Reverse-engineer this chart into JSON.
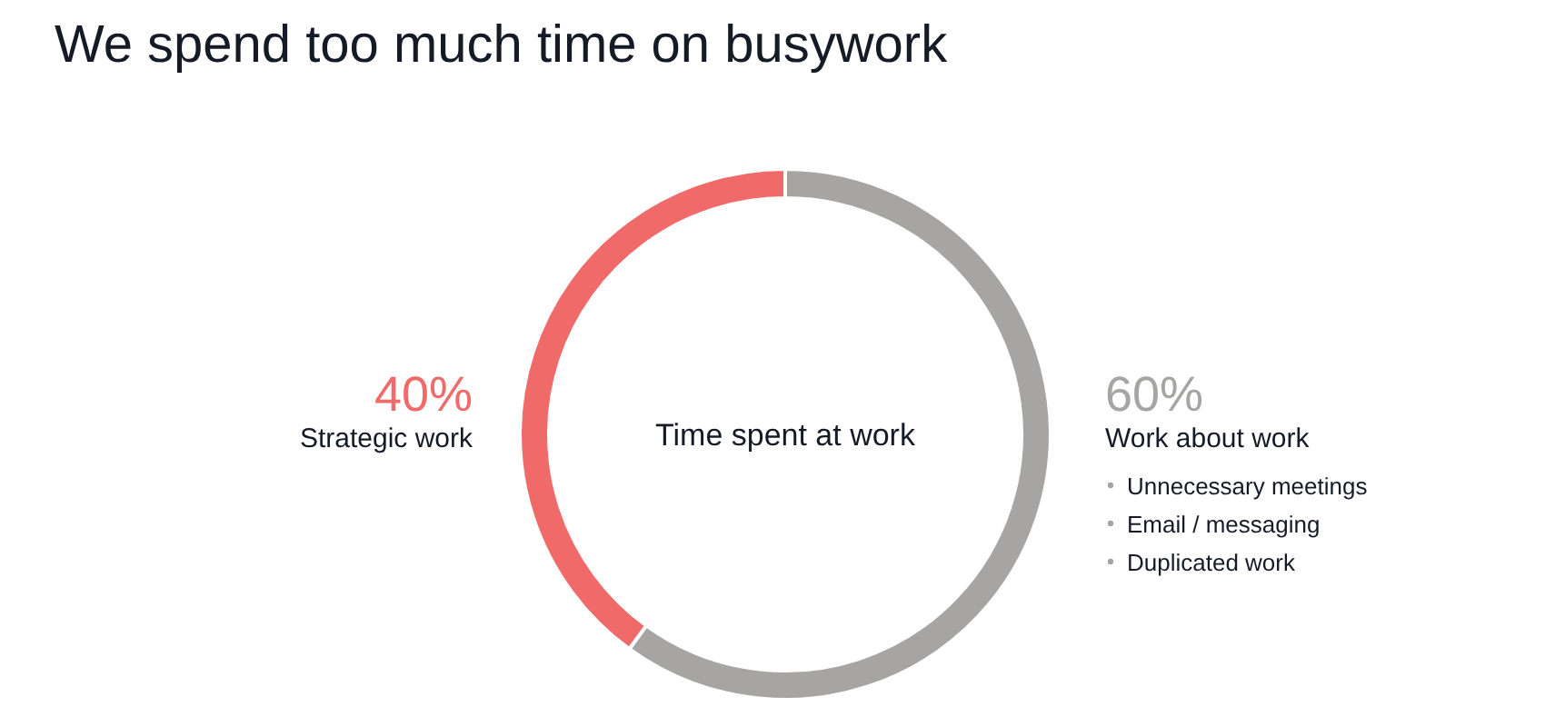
{
  "chart_data": {
    "type": "donut",
    "title": "We spend too much time on busywork",
    "categories": [
      "Work about work",
      "Strategic work"
    ],
    "values": [
      60,
      40
    ],
    "colors": [
      "#a6a5a3",
      "#f06a6a"
    ],
    "value_labels": [
      "60%",
      "40%"
    ],
    "annotations": [
      "Time spent at work",
      "Unnecessary meetings",
      "Email / messaging",
      "Duplicated work"
    ]
  }
}
